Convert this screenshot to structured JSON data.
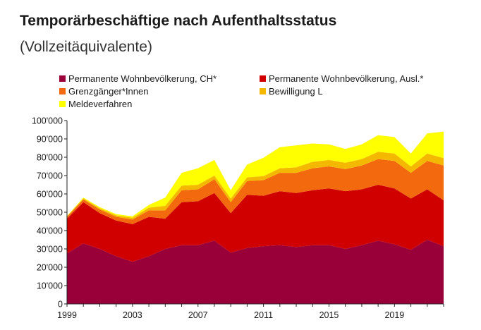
{
  "chart_data": {
    "type": "area",
    "stacked": true,
    "title": "Temporärbeschäftige nach Aufenthaltsstatus",
    "subtitle": "(Vollzeitäquivalente)",
    "xlabel": "",
    "ylabel": "",
    "x": [
      1999,
      2000,
      2001,
      2002,
      2003,
      2004,
      2005,
      2006,
      2007,
      2008,
      2009,
      2010,
      2011,
      2012,
      2013,
      2014,
      2015,
      2016,
      2017,
      2018,
      2019,
      2020,
      2021,
      2022
    ],
    "xticks": [
      {
        "value": 1999,
        "label": "1999"
      },
      {
        "value": 2003,
        "label": "2003"
      },
      {
        "value": 2007,
        "label": "2007"
      },
      {
        "value": 2011,
        "label": "2011"
      },
      {
        "value": 2015,
        "label": "2015"
      },
      {
        "value": 2019,
        "label": "2019"
      }
    ],
    "ylim": [
      0,
      100000
    ],
    "yticks": [
      {
        "value": 0,
        "label": "0"
      },
      {
        "value": 10000,
        "label": "10'000"
      },
      {
        "value": 20000,
        "label": "20'000"
      },
      {
        "value": 30000,
        "label": "30'000"
      },
      {
        "value": 40000,
        "label": "40'000"
      },
      {
        "value": 50000,
        "label": "50'000"
      },
      {
        "value": 60000,
        "label": "60'000"
      },
      {
        "value": 70000,
        "label": "70'000"
      },
      {
        "value": 80000,
        "label": "80'000"
      },
      {
        "value": 90000,
        "label": "90'000"
      },
      {
        "value": 100000,
        "label": "100'000"
      }
    ],
    "grid": false,
    "legend_position": "top",
    "series": [
      {
        "name": "Permanente Wohnbevölkerung, CH*",
        "color": "#99003a",
        "values": [
          27500,
          33000,
          30000,
          26000,
          23000,
          26000,
          30000,
          32000,
          32000,
          34500,
          28000,
          30500,
          31500,
          32000,
          31000,
          32000,
          32000,
          30000,
          32000,
          34500,
          32500,
          29500,
          35000,
          31500
        ]
      },
      {
        "name": "Permanente Wohnbevölkerung, Ausl.*",
        "color": "#d10000",
        "values": [
          19000,
          22500,
          19500,
          19500,
          20500,
          21500,
          16500,
          23500,
          24000,
          26000,
          21500,
          29000,
          27500,
          29500,
          29500,
          30000,
          31000,
          31500,
          30500,
          30500,
          30500,
          28000,
          27500,
          25000
        ]
      },
      {
        "name": "Grenzgänger*Innen",
        "color": "#f26a0d",
        "values": [
          1000,
          1500,
          2000,
          2000,
          2500,
          3500,
          4500,
          6500,
          6500,
          7500,
          6000,
          7500,
          8500,
          10000,
          11000,
          12000,
          12000,
          12000,
          13000,
          14000,
          15000,
          14000,
          15500,
          19000
        ]
      },
      {
        "name": "Bewilligung L",
        "color": "#f5b800",
        "values": [
          300,
          500,
          700,
          800,
          1000,
          1500,
          2500,
          2500,
          2500,
          2000,
          2000,
          2000,
          2200,
          2500,
          3000,
          3500,
          3500,
          3500,
          3500,
          4000,
          4000,
          3500,
          4000,
          4000
        ]
      },
      {
        "name": "Meldeverfahren",
        "color": "#ffff00",
        "values": [
          200,
          500,
          600,
          700,
          800,
          1500,
          4500,
          7000,
          9000,
          8500,
          4500,
          7000,
          10000,
          11500,
          12000,
          10000,
          8500,
          7500,
          8000,
          9000,
          9000,
          7000,
          11000,
          14500
        ]
      }
    ]
  }
}
